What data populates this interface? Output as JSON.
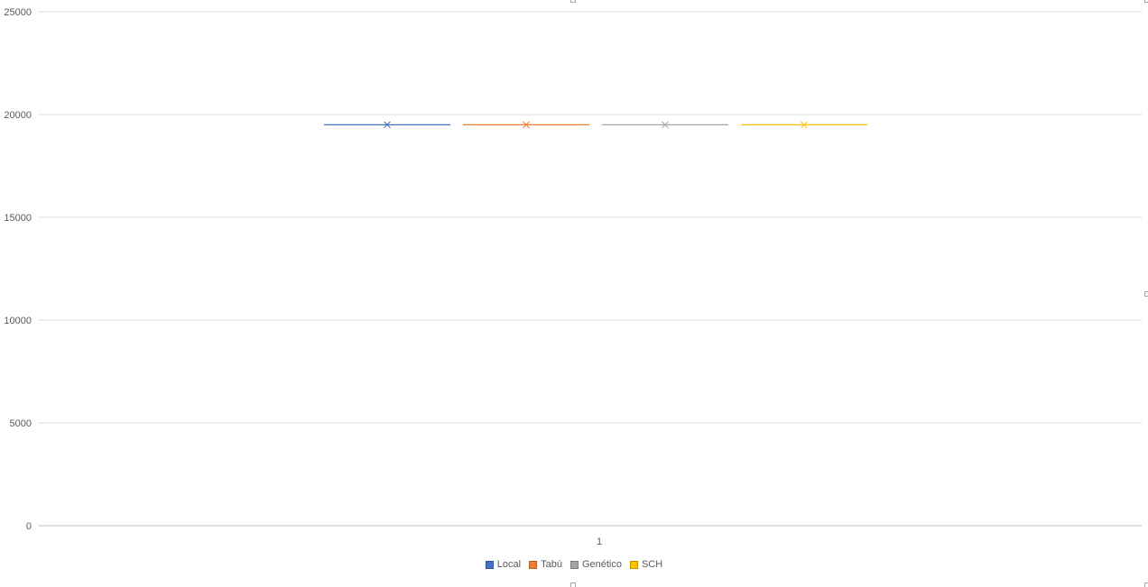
{
  "chart_data": {
    "type": "line",
    "title": "",
    "xlabel": "",
    "ylabel": "",
    "categories": [
      "1"
    ],
    "ylim": [
      0,
      25000
    ],
    "yticks": [
      0,
      5000,
      10000,
      15000,
      20000,
      25000
    ],
    "grid": true,
    "legend_position": "bottom",
    "marker": "x",
    "series": [
      {
        "name": "Local",
        "values": [
          19500
        ],
        "color": "#4472C4"
      },
      {
        "name": "Tabú",
        "values": [
          19500
        ],
        "color": "#ED7D31"
      },
      {
        "name": "Genético",
        "values": [
          19500
        ],
        "color": "#A5A5A5"
      },
      {
        "name": "SCH",
        "values": [
          19500
        ],
        "color": "#FFC000"
      }
    ]
  }
}
